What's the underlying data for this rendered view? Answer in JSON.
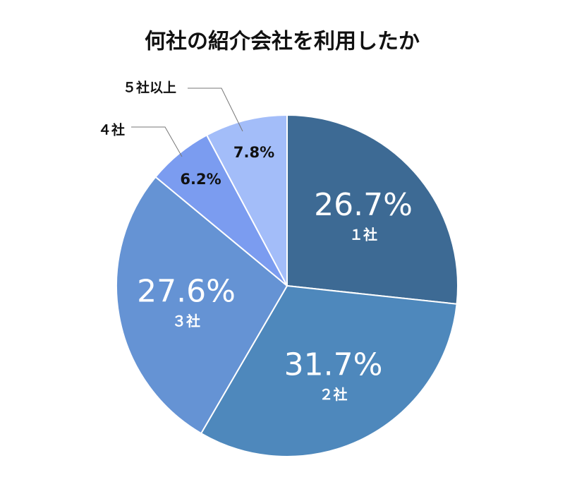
{
  "chart_data": {
    "type": "pie",
    "title": "何社の紹介会社を利用したか",
    "categories": [
      "１社",
      "２社",
      "３社",
      "４社",
      "５社以上"
    ],
    "values": [
      26.7,
      31.7,
      27.6,
      6.2,
      7.8
    ],
    "value_labels": [
      "26.7%",
      "31.7%",
      "27.6%",
      "6.2%",
      "7.8%"
    ],
    "colors": [
      "#3d6a94",
      "#4e88bc",
      "#6593d4",
      "#7b9cf0",
      "#a3bdf9"
    ]
  }
}
